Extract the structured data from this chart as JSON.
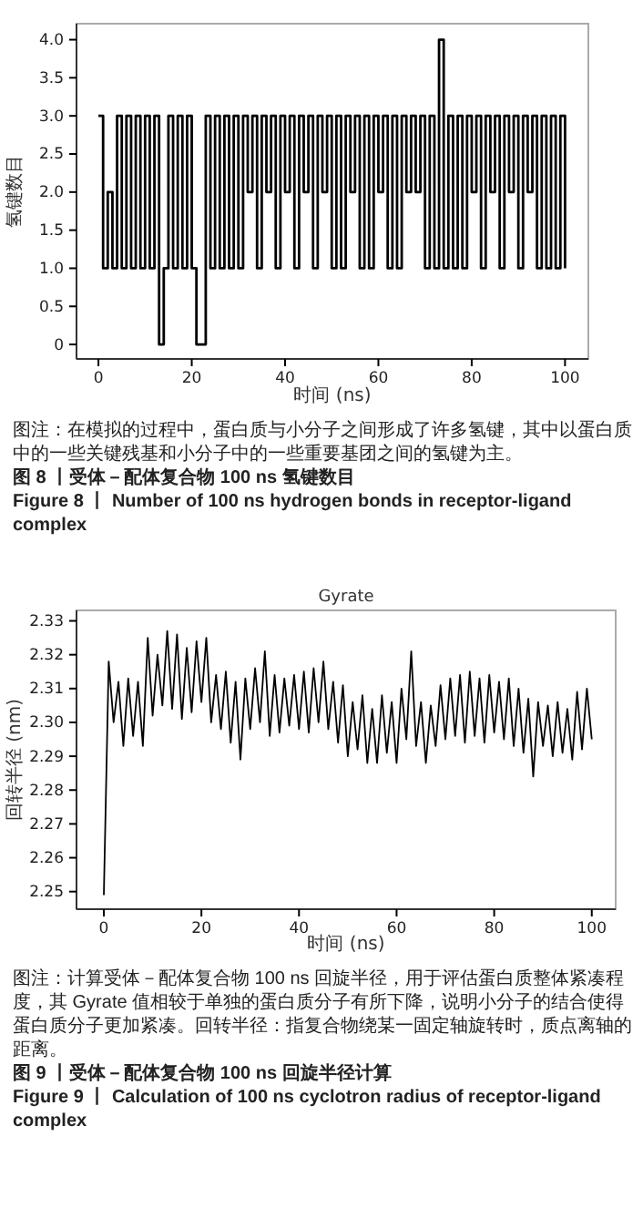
{
  "chart_data": [
    {
      "type": "step",
      "xlabel": "时间 (ns)",
      "ylabel": "氢键数目",
      "xlim": [
        -4.7,
        105
      ],
      "ylim": [
        -0.19,
        4.21
      ],
      "xticks": [
        0,
        20,
        40,
        60,
        80,
        100
      ],
      "yticks": [
        0,
        {
          "value": 0.5,
          "label": "0.5"
        },
        {
          "value": 1,
          "label": "1.0"
        },
        {
          "value": 1.5,
          "label": "1.5"
        },
        {
          "value": 2,
          "label": "2.0"
        },
        {
          "value": 2.5,
          "label": "2.5"
        },
        {
          "value": 3,
          "label": "3.0"
        },
        {
          "value": 3.5,
          "label": "3.5"
        },
        {
          "value": 4,
          "label": "4.0"
        }
      ],
      "grid": false,
      "series": [
        {
          "color": "#000000",
          "x": [
            0,
            1,
            2,
            3,
            4,
            5,
            6,
            7,
            8,
            9,
            10,
            11,
            12,
            13,
            14,
            15,
            16,
            17,
            18,
            19,
            20,
            21,
            22,
            23,
            24,
            25,
            26,
            27,
            28,
            29,
            30,
            31,
            32,
            33,
            34,
            35,
            36,
            37,
            38,
            39,
            40,
            41,
            42,
            43,
            44,
            45,
            46,
            47,
            48,
            49,
            50,
            51,
            52,
            53,
            54,
            55,
            56,
            57,
            58,
            59,
            60,
            61,
            62,
            63,
            64,
            65,
            66,
            67,
            68,
            69,
            70,
            71,
            72,
            73,
            74,
            75,
            76,
            77,
            78,
            79,
            80,
            81,
            82,
            83,
            84,
            85,
            86,
            87,
            88,
            89,
            90,
            91,
            92,
            93,
            94,
            95,
            96,
            97,
            98,
            99,
            100
          ],
          "values": [
            3,
            1,
            2,
            1,
            3,
            1,
            3,
            1,
            3,
            1,
            3,
            1,
            3,
            0,
            1,
            3,
            1,
            3,
            1,
            3,
            1,
            0,
            0,
            3,
            1,
            3,
            1,
            3,
            1,
            3,
            1,
            3,
            2,
            3,
            1,
            3,
            2,
            3,
            1,
            3,
            2,
            3,
            1,
            3,
            2,
            3,
            1,
            3,
            2,
            3,
            1,
            3,
            1,
            3,
            2,
            3,
            1,
            3,
            1,
            3,
            2,
            3,
            1,
            3,
            1,
            3,
            2,
            3,
            2,
            3,
            1,
            3,
            1,
            4,
            1,
            3,
            1,
            3,
            1,
            3,
            2,
            3,
            1,
            3,
            2,
            3,
            1,
            3,
            2,
            3,
            1,
            3,
            2,
            3,
            1,
            3,
            1,
            3,
            1,
            3,
            1
          ]
        }
      ],
      "annotations": [
        "图注：在模拟的过程中，蛋白质与小分子之间形成了许多氢键，其中以蛋白质中的一些关键残基和小分子中的一些重要基团之间的氢键为主。",
        "图 8 丨受体－配体复合物 100 ns 氢键数目",
        "Figure 8 丨 Number of 100 ns hydrogen bonds in receptor-ligand complex"
      ]
    },
    {
      "type": "line",
      "title": "Gyrate",
      "xlabel": "时间 (ns)",
      "ylabel": "回转半径 (nm)",
      "xlim": [
        -5.6,
        104.9
      ],
      "ylim": [
        2.2448,
        2.3331
      ],
      "xticks": [
        0,
        20,
        40,
        60,
        80,
        100
      ],
      "yticks": [
        2.25,
        2.26,
        2.27,
        2.28,
        2.29,
        {
          "value": 2.3,
          "label": "2.30"
        },
        2.31,
        2.32,
        2.33
      ],
      "grid": false,
      "series": [
        {
          "color": "#000000",
          "x": [
            0,
            1,
            2,
            3,
            4,
            5,
            6,
            7,
            8,
            9,
            10,
            11,
            12,
            13,
            14,
            15,
            16,
            17,
            18,
            19,
            20,
            21,
            22,
            23,
            24,
            25,
            26,
            27,
            28,
            29,
            30,
            31,
            32,
            33,
            34,
            35,
            36,
            37,
            38,
            39,
            40,
            41,
            42,
            43,
            44,
            45,
            46,
            47,
            48,
            49,
            50,
            51,
            52,
            53,
            54,
            55,
            56,
            57,
            58,
            59,
            60,
            61,
            62,
            63,
            64,
            65,
            66,
            67,
            68,
            69,
            70,
            71,
            72,
            73,
            74,
            75,
            76,
            77,
            78,
            79,
            80,
            81,
            82,
            83,
            84,
            85,
            86,
            87,
            88,
            89,
            90,
            91,
            92,
            93,
            94,
            95,
            96,
            97,
            98,
            99,
            100
          ],
          "values": [
            2.249,
            2.318,
            2.3,
            2.312,
            2.293,
            2.313,
            2.296,
            2.312,
            2.293,
            2.325,
            2.302,
            2.32,
            2.305,
            2.327,
            2.304,
            2.326,
            2.301,
            2.322,
            2.303,
            2.324,
            2.306,
            2.325,
            2.3,
            2.314,
            2.298,
            2.315,
            2.294,
            2.312,
            2.289,
            2.313,
            2.298,
            2.316,
            2.3,
            2.321,
            2.296,
            2.314,
            2.297,
            2.313,
            2.299,
            2.314,
            2.298,
            2.315,
            2.297,
            2.316,
            2.3,
            2.318,
            2.298,
            2.312,
            2.294,
            2.311,
            2.29,
            2.306,
            2.292,
            2.308,
            2.288,
            2.304,
            2.288,
            2.308,
            2.291,
            2.306,
            2.288,
            2.31,
            2.295,
            2.321,
            2.293,
            2.306,
            2.288,
            2.305,
            2.293,
            2.311,
            2.295,
            2.313,
            2.296,
            2.314,
            2.294,
            2.315,
            2.296,
            2.313,
            2.294,
            2.314,
            2.297,
            2.312,
            2.295,
            2.313,
            2.293,
            2.31,
            2.291,
            2.307,
            2.284,
            2.306,
            2.293,
            2.305,
            2.29,
            2.306,
            2.291,
            2.304,
            2.289,
            2.309,
            2.292,
            2.31,
            2.295
          ]
        }
      ],
      "annotations": [
        "图注：计算受体－配体复合物 100 ns 回旋半径，用于评估蛋白质整体紧凑程度，其 Gyrate 值相较于单独的蛋白质分子有所下降，说明小分子的结合使得蛋白质分子更加紧凑。回转半径：指复合物绕某一固定轴旋转时，质点离轴的距离。",
        "图 9 丨受体－配体复合物 100 ns 回旋半径计算",
        "Figure 9 丨 Calculation of 100 ns cyclotron radius of receptor-ligand complex"
      ]
    }
  ]
}
